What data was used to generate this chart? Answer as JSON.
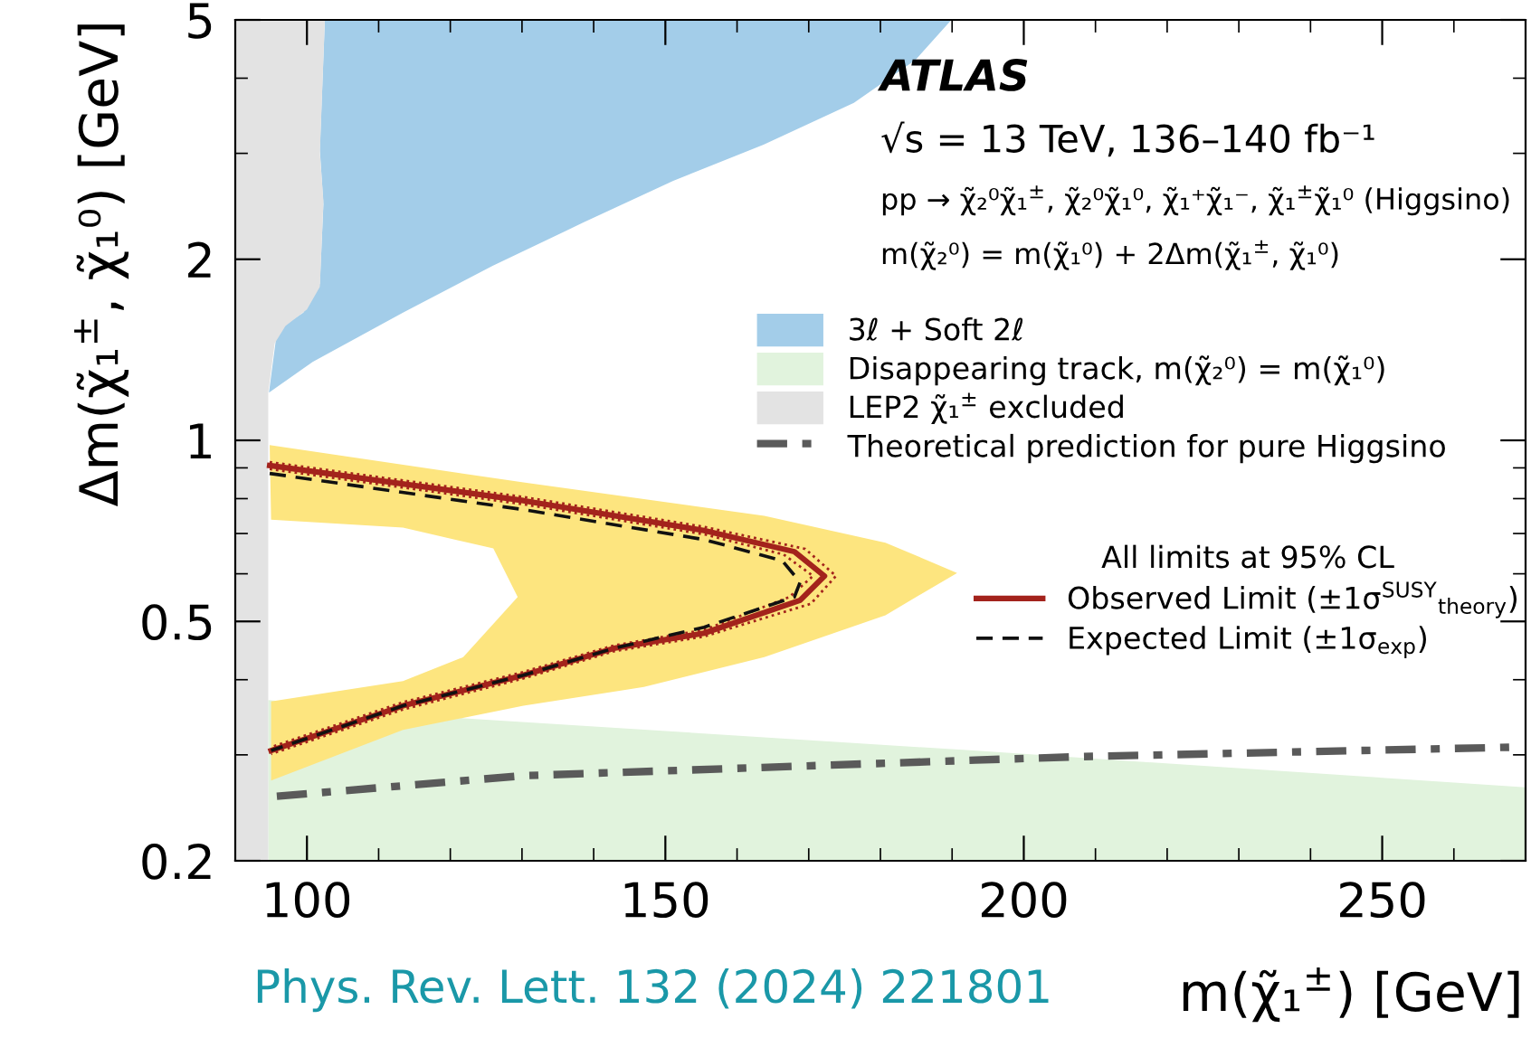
{
  "chart_data": {
    "type": "line",
    "xlabel": "m(χ̃₁$^{±}$) [GeV]",
    "ylabel": "Δm(χ̃₁$^{±}$, χ̃₁⁰) [GeV]",
    "log": "y",
    "xlim": [
      90,
      270
    ],
    "xticks": [
      100,
      150,
      200,
      250
    ],
    "ylim": [
      0.2,
      5
    ],
    "yticks": [
      0.2,
      0.5,
      1,
      2,
      5
    ],
    "legend": "right",
    "legend_title": "All limits at 95% CL",
    "annotations": [
      "ATLAS",
      "√s = 13 TeV, 136–140 fb⁻¹",
      "pp → χ̃₂⁰χ̃₁$^{±}$, χ̃₂⁰χ̃₁⁰, χ̃₁⁺χ̃₁⁻, χ̃₁$^{±}$χ̃₁⁰ (Higgsino)",
      "m(χ̃₂⁰) = m(χ̃₁⁰) + 2Δm(χ̃₁$^{±}$, χ̃₁⁰)",
      "Phys. Rev. Lett. 132 (2024) 221801"
    ],
    "series": [
      {
        "name": "3ℓ + Soft 2ℓ",
        "type": "area",
        "color": "#a3cde9",
        "x": [
          102.5,
          101.8,
          102.3,
          101.8,
          99.5,
          96.7,
          95.7,
          94.7,
          100.8,
          113.4,
          125.9,
          138.5,
          151.1,
          163.7,
          176.3,
          184.9,
          189.9
        ],
        "values": [
          5,
          3.04,
          2.47,
          1.82,
          1.63,
          1.55,
          1.48,
          1.2,
          1.35,
          1.63,
          1.95,
          2.3,
          2.7,
          3.1,
          3.64,
          4.29,
          5
        ]
      },
      {
        "name": "Disappearing track, m(χ̃₂⁰) = m(χ̃₁⁰)",
        "type": "area",
        "color": "#e1f3dd",
        "x": [
          94.6,
          94.6,
          122,
          193,
          270,
          270
        ],
        "values": [
          0.2,
          0.37,
          0.345,
          0.305,
          0.265,
          0.2
        ]
      },
      {
        "name": "LEP2 χ̃₁$^{±}$ excluded",
        "type": "area",
        "color": "#e3e3e3",
        "x": [
          90,
          94.6,
          94.6,
          95.5,
          97,
          100,
          101.8,
          102.3,
          101.8,
          102.5,
          90
        ],
        "values": [
          0.2,
          0.2,
          1.2,
          1.45,
          1.55,
          1.65,
          1.8,
          2.5,
          3.0,
          5,
          5
        ]
      },
      {
        "name": "Theoretical prediction for pure Higgsino",
        "line_style": "dashdot",
        "color": "#5a5a5a",
        "x": [
          95.8,
          130.2,
          193.2,
          208,
          268.6
        ],
        "values": [
          0.256,
          0.277,
          0.294,
          0.298,
          0.309
        ]
      },
      {
        "type": "area",
        "color": "#fde57f",
        "x": [
          94.8,
          130.2,
          163.8,
          180.7,
          190.7,
          180.7,
          163.8,
          147.0,
          130.2,
          113.4,
          95.0,
          95.0,
          113.4,
          121.8,
          129.4,
          126.0,
          113.4,
          95.0
        ],
        "values": [
          0.982,
          0.851,
          0.749,
          0.676,
          0.602,
          0.512,
          0.436,
          0.389,
          0.362,
          0.33,
          0.272,
          0.368,
          0.398,
          0.436,
          0.549,
          0.661,
          0.716,
          0.738
        ]
      },
      {
        "line_style": "dotted",
        "color": "#a3231c",
        "x": [
          94.8,
          130.2,
          155.4,
          169.5,
          173.8,
          170.3,
          155.4,
          142.8,
          130.2,
          113.4,
          95.0
        ],
        "values": [
          0.92,
          0.805,
          0.718,
          0.66,
          0.595,
          0.535,
          0.472,
          0.446,
          0.402,
          0.357,
          0.301
        ]
      },
      {
        "line_style": "dotted",
        "color": "#a3231c",
        "x": [
          94.8,
          130.2,
          155.4,
          166.5,
          170.6,
          167.3,
          155.4,
          142.8,
          130.2,
          113.4,
          95.0
        ],
        "values": [
          0.896,
          0.783,
          0.698,
          0.646,
          0.595,
          0.549,
          0.484,
          0.456,
          0.412,
          0.367,
          0.309
        ]
      },
      {
        "name": "Observed Limit (±1σ$^{SUSY}$$_{theory}$)",
        "line_style": "solid",
        "color": "#a3231c",
        "x": [
          94.8,
          130.2,
          155.4,
          168.0,
          172.2,
          168.8,
          155.4,
          142.8,
          130.2,
          113.4,
          95.0
        ],
        "values": [
          0.908,
          0.794,
          0.708,
          0.653,
          0.595,
          0.542,
          0.478,
          0.451,
          0.407,
          0.362,
          0.305
        ]
      },
      {
        "name": "Expected Limit (±1σ$_{exp}$)",
        "line_style": "dashed",
        "color": "#111111",
        "x": [
          94.8,
          130.2,
          155.4,
          166.3,
          168.8,
          168.0,
          155.4,
          142.8,
          130.2,
          113.4,
          95.0
        ],
        "values": [
          0.881,
          0.767,
          0.684,
          0.631,
          0.581,
          0.549,
          0.489,
          0.451,
          0.407,
          0.362,
          0.305
        ]
      }
    ]
  }
}
